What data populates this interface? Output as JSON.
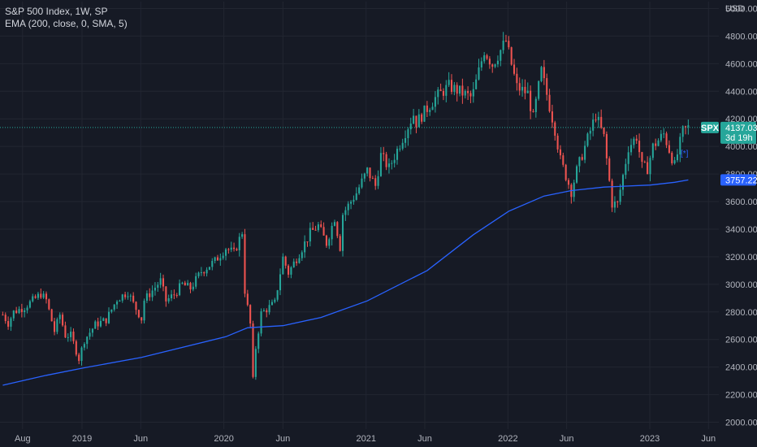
{
  "chart_data": {
    "type": "candlestick",
    "title": "S&P 500 Index, 1W, SP",
    "indicator": "EMA (200, close, 0, SMA, 5)",
    "currency": "USD",
    "symbol": "SPX",
    "last_price": "4137.03",
    "countdown": "3d 19h",
    "ema_last_label": "3757.22",
    "ylim": [
      1950,
      5050
    ],
    "y_ticks": [
      2000,
      2200,
      2400,
      2600,
      2800,
      3000,
      3200,
      3400,
      3600,
      3800,
      4000,
      4200,
      4400,
      4600,
      4800,
      5000
    ],
    "y_tick_labels": [
      "2000.00",
      "2200.00",
      "2400.00",
      "2600.00",
      "2800.00",
      "3000.00",
      "3200.00",
      "3400.00",
      "3600.00",
      "3800.00",
      "4000.00",
      "4200.00",
      "4400.00",
      "4600.00",
      "4800.00",
      "5000.00"
    ],
    "x_ticks": [
      {
        "label": "Aug",
        "date": "2018-08-01"
      },
      {
        "label": "2019",
        "date": "2019-01-01"
      },
      {
        "label": "Jun",
        "date": "2019-06-01"
      },
      {
        "label": "2020",
        "date": "2020-01-01"
      },
      {
        "label": "Jun",
        "date": "2020-06-01"
      },
      {
        "label": "2021",
        "date": "2021-01-01"
      },
      {
        "label": "Jun",
        "date": "2021-06-01"
      },
      {
        "label": "2022",
        "date": "2022-01-01"
      },
      {
        "label": "Jun",
        "date": "2022-06-01"
      },
      {
        "label": "2023",
        "date": "2023-01-01"
      },
      {
        "label": "Jun",
        "date": "2023-06-01"
      }
    ],
    "weekly_close_path": [
      [
        "2018-06-11",
        2780
      ],
      [
        "2018-06-25",
        2718
      ],
      [
        "2018-07-09",
        2800
      ],
      [
        "2018-08-06",
        2835
      ],
      [
        "2018-09-17",
        2930
      ],
      [
        "2018-10-01",
        2885
      ],
      [
        "2018-10-22",
        2660
      ],
      [
        "2018-11-05",
        2780
      ],
      [
        "2018-11-19",
        2630
      ],
      [
        "2018-12-03",
        2630
      ],
      [
        "2018-12-24",
        2460
      ],
      [
        "2019-01-07",
        2596
      ],
      [
        "2019-02-04",
        2707
      ],
      [
        "2019-03-04",
        2743
      ],
      [
        "2019-04-01",
        2892
      ],
      [
        "2019-04-29",
        2945
      ],
      [
        "2019-05-13",
        2860
      ],
      [
        "2019-06-03",
        2750
      ],
      [
        "2019-06-10",
        2885
      ],
      [
        "2019-07-22",
        3025
      ],
      [
        "2019-08-05",
        2880
      ],
      [
        "2019-08-26",
        2926
      ],
      [
        "2019-09-16",
        3000
      ],
      [
        "2019-10-07",
        2970
      ],
      [
        "2019-11-04",
        3093
      ],
      [
        "2019-12-09",
        3168
      ],
      [
        "2020-01-06",
        3265
      ],
      [
        "2020-01-27",
        3225
      ],
      [
        "2020-02-17",
        3380
      ],
      [
        "2020-02-24",
        2954
      ],
      [
        "2020-03-09",
        2711
      ],
      [
        "2020-03-16",
        2305
      ],
      [
        "2020-03-23",
        2541
      ],
      [
        "2020-04-06",
        2790
      ],
      [
        "2020-05-11",
        2864
      ],
      [
        "2020-06-01",
        3193
      ],
      [
        "2020-06-15",
        3083
      ],
      [
        "2020-07-13",
        3225
      ],
      [
        "2020-08-10",
        3372
      ],
      [
        "2020-08-31",
        3425
      ],
      [
        "2020-09-21",
        3298
      ],
      [
        "2020-10-12",
        3483
      ],
      [
        "2020-10-26",
        3270
      ],
      [
        "2020-11-02",
        3510
      ],
      [
        "2020-12-07",
        3663
      ],
      [
        "2021-01-04",
        3825
      ],
      [
        "2021-01-25",
        3714
      ],
      [
        "2021-02-08",
        3935
      ],
      [
        "2021-03-01",
        3842
      ],
      [
        "2021-03-29",
        4020
      ],
      [
        "2021-05-03",
        4232
      ],
      [
        "2021-05-10",
        4173
      ],
      [
        "2021-06-28",
        4352
      ],
      [
        "2021-08-02",
        4437
      ],
      [
        "2021-09-27",
        4357
      ],
      [
        "2021-10-04",
        4391
      ],
      [
        "2021-11-01",
        4697
      ],
      [
        "2021-11-22",
        4594
      ],
      [
        "2021-12-27",
        4766
      ],
      [
        "2022-01-03",
        4677
      ],
      [
        "2022-01-24",
        4431
      ],
      [
        "2022-02-21",
        4384
      ],
      [
        "2022-03-07",
        4204
      ],
      [
        "2022-03-28",
        4546
      ],
      [
        "2022-05-02",
        4123
      ],
      [
        "2022-05-16",
        3901
      ],
      [
        "2022-06-13",
        3674
      ],
      [
        "2022-06-27",
        3825
      ],
      [
        "2022-08-15",
        4228
      ],
      [
        "2022-09-05",
        4067
      ],
      [
        "2022-09-26",
        3585
      ],
      [
        "2022-10-10",
        3583
      ],
      [
        "2022-11-07",
        3993
      ],
      [
        "2022-11-28",
        4071
      ],
      [
        "2022-12-12",
        3852
      ],
      [
        "2022-12-26",
        3840
      ],
      [
        "2023-01-09",
        3999
      ],
      [
        "2023-02-06",
        4090
      ],
      [
        "2023-03-06",
        3861
      ],
      [
        "2023-03-27",
        4109
      ],
      [
        "2023-04-10",
        4137
      ]
    ],
    "ema_path": [
      [
        "2018-06-11",
        2268
      ],
      [
        "2018-10-01",
        2340
      ],
      [
        "2019-01-07",
        2395
      ],
      [
        "2019-06-03",
        2470
      ],
      [
        "2020-01-06",
        2620
      ],
      [
        "2020-03-02",
        2685
      ],
      [
        "2020-06-01",
        2700
      ],
      [
        "2020-09-07",
        2760
      ],
      [
        "2021-01-04",
        2880
      ],
      [
        "2021-06-07",
        3100
      ],
      [
        "2021-10-04",
        3360
      ],
      [
        "2022-01-03",
        3530
      ],
      [
        "2022-04-04",
        3640
      ],
      [
        "2022-06-13",
        3680
      ],
      [
        "2022-09-05",
        3705
      ],
      [
        "2023-01-02",
        3720
      ],
      [
        "2023-03-06",
        3740
      ],
      [
        "2023-04-10",
        3757
      ]
    ]
  }
}
